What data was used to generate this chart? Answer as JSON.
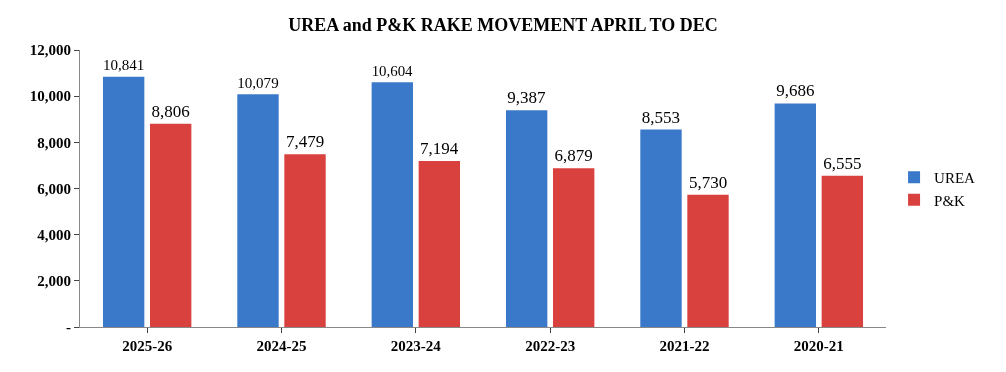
{
  "chart_data": {
    "type": "bar",
    "title": "UREA and P&K RAKE MOVEMENT APRIL TO DEC",
    "categories": [
      "2025-26",
      "2024-25",
      "2023-24",
      "2022-23",
      "2021-22",
      "2020-21"
    ],
    "series": [
      {
        "name": "UREA",
        "color": "#3a78c9",
        "values": [
          10841,
          10079,
          10604,
          9387,
          8553,
          9686
        ],
        "value_labels": [
          "10,841",
          "10,079",
          "10,604",
          "9,387",
          "8,553",
          "9,686"
        ]
      },
      {
        "name": "P&K",
        "color": "#d9413f",
        "values": [
          8806,
          7479,
          7194,
          6879,
          5730,
          6555
        ],
        "value_labels": [
          "8,806",
          "7,479",
          "7,194",
          "6,879",
          "5,730",
          "6,555"
        ]
      }
    ],
    "ylim": [
      0,
      12000
    ],
    "yticks": [
      {
        "value": 0,
        "label": "-"
      },
      {
        "value": 2000,
        "label": "2,000"
      },
      {
        "value": 4000,
        "label": "4,000"
      },
      {
        "value": 6000,
        "label": "6,000"
      },
      {
        "value": 8000,
        "label": "8,000"
      },
      {
        "value": 10000,
        "label": "10,000"
      },
      {
        "value": 12000,
        "label": "12,000"
      }
    ],
    "grid": false,
    "legend": "right"
  }
}
